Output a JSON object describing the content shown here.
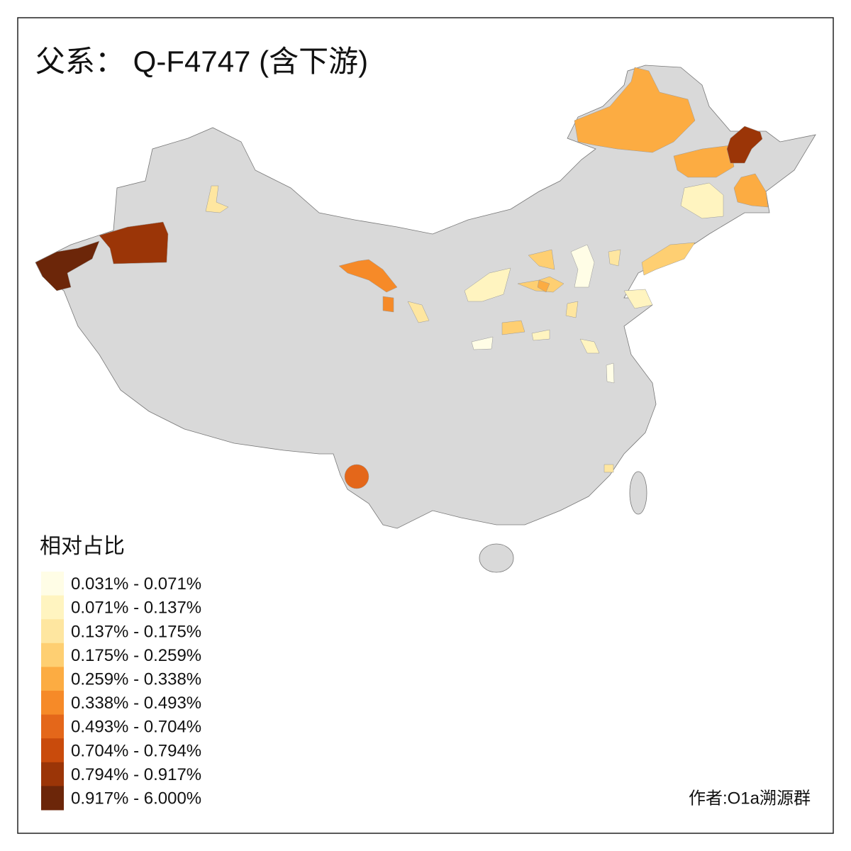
{
  "title": "父系： Q-F4747 (含下游)",
  "legend": {
    "title": "相对占比",
    "items": [
      {
        "label": "0.031% - 0.071%",
        "color": "#fffde6"
      },
      {
        "label": "0.071% - 0.137%",
        "color": "#fff4c0"
      },
      {
        "label": "0.137% - 0.175%",
        "color": "#fee6a0"
      },
      {
        "label": "0.175% - 0.259%",
        "color": "#fecf72"
      },
      {
        "label": "0.259% - 0.338%",
        "color": "#fcac42"
      },
      {
        "label": "0.338% - 0.493%",
        "color": "#f68a28"
      },
      {
        "label": "0.493% - 0.704%",
        "color": "#e4671a"
      },
      {
        "label": "0.704% - 0.794%",
        "color": "#c94b0c"
      },
      {
        "label": "0.794% - 0.917%",
        "color": "#9b3507"
      },
      {
        "label": "0.917% - 6.000%",
        "color": "#6c2609"
      }
    ]
  },
  "credit": "作者:O1a溯源群"
}
